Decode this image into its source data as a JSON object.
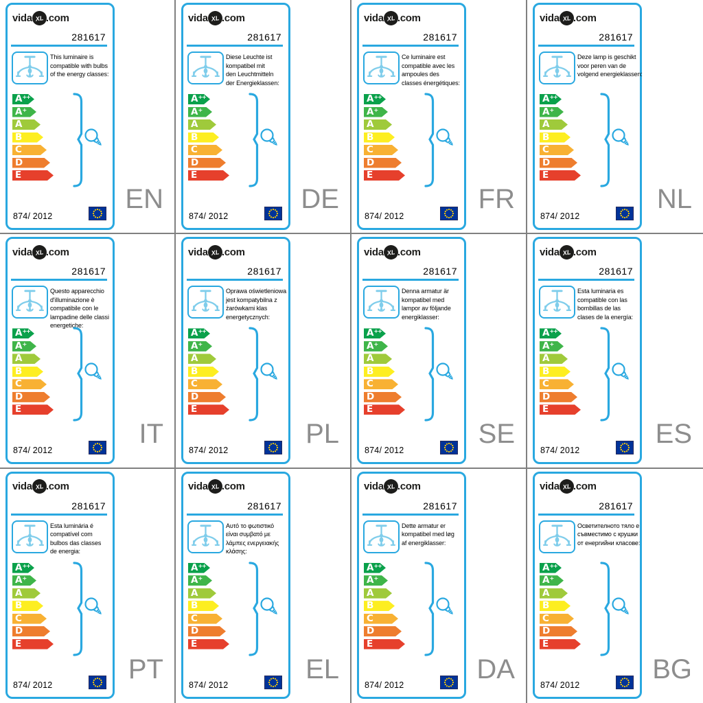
{
  "page": {
    "background": "#ffffff",
    "grid_line_color": "#808080"
  },
  "brand": {
    "prefix": "vida",
    "badge": "XL",
    "suffix": ".com"
  },
  "shared": {
    "product_code": "281617",
    "regulation": "874/ 2012",
    "accent_blue": "#29a8e0",
    "chandelier_blue": "#7fcdeb",
    "eu_flag_blue": "#003399",
    "eu_star_yellow": "#ffcc00",
    "lang_code_color": "#8d8d8d"
  },
  "energy_classes": [
    {
      "label": "A",
      "sup": "++",
      "color": "#0aa14b",
      "width": 32
    },
    {
      "label": "A",
      "sup": "+",
      "color": "#3fb549",
      "width": 35
    },
    {
      "label": "A",
      "sup": "",
      "color": "#9fca3b",
      "width": 41
    },
    {
      "label": "B",
      "sup": "",
      "color": "#fdee21",
      "width": 45
    },
    {
      "label": "C",
      "sup": "",
      "color": "#f8b133",
      "width": 50
    },
    {
      "label": "D",
      "sup": "",
      "color": "#ee7d2e",
      "width": 55
    },
    {
      "label": "E",
      "sup": "",
      "color": "#e6402c",
      "width": 60
    }
  ],
  "cards": [
    {
      "lang": "EN",
      "description": "This luminaire is\ncompatible with bulbs\nof the energy classes:"
    },
    {
      "lang": "DE",
      "description": "Diese Leuchte ist\nkompatibel mit\nden Leuchtmitteln\nder Energieklassen:"
    },
    {
      "lang": "FR",
      "description": "Ce luminaire est\ncompatible avec les\nampoules des\nclasses énergétiques:"
    },
    {
      "lang": "NL",
      "description": "Deze lamp is geschikt\nvoor peren van de\nvolgend energieklassen:"
    },
    {
      "lang": "IT",
      "description": "Questo apparecchio\nd'illuminazione è\ncompatibile con le\nlampadine delle classi\nenergetiche:"
    },
    {
      "lang": "PL",
      "description": "Oprawa oświetleniowa\njest kompatybilna z\nżarówkami klas\nenergetycznych:"
    },
    {
      "lang": "SE",
      "description": "Denna armatur är\nkompatibel med\nlampor av följande\nenergiklasser:"
    },
    {
      "lang": "ES",
      "description": "Esta luminaria es\ncompatible con las\nbombillas de las\nclases de la energía:"
    },
    {
      "lang": "PT",
      "description": "Esta luminária é\ncompatível com\nbulbos das classes\nde energia:"
    },
    {
      "lang": "EL",
      "description": "Αυτό το φωτιστικό\nείναι συμβατό με\nλάμπες ενεργειακής\nκλάσης:"
    },
    {
      "lang": "DA",
      "description": "Dette armatur er\nkompatibel med løg\naf energiklasser:"
    },
    {
      "lang": "BG",
      "description": "Осветителното тяло е\nсъвместимо с крушки\nот енергийни класове:"
    }
  ]
}
